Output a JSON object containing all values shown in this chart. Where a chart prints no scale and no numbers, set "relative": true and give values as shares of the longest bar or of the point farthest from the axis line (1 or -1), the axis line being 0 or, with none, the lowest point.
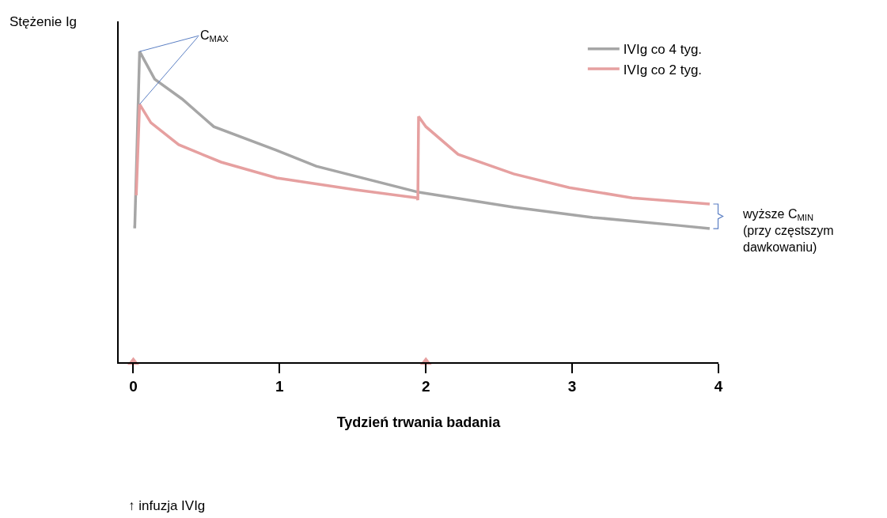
{
  "chart_data": {
    "type": "line",
    "relative": true,
    "ylabel": "Stężenie Ig",
    "xlabel": "Tydzień trwania badania",
    "xlim": [
      -0.1,
      4
    ],
    "xticks": [
      0,
      1,
      2,
      3,
      4
    ],
    "legend": "top right",
    "series": [
      {
        "name": "IVIg co 4 tyg.",
        "color": "#a6a6a6",
        "x": [
          0,
          0.01,
          0.043,
          0.146,
          0.334,
          0.55,
          0.98,
          1.25,
          1.95,
          2.6,
          3.14,
          3.73,
          3.94
        ],
        "values": [
          0.435,
          0.435,
          1,
          0.911,
          0.847,
          0.758,
          0.682,
          0.631,
          0.547,
          0.499,
          0.466,
          0.44,
          0.43
        ]
      },
      {
        "name": "IVIg co 2 tyg.",
        "color": "#e6a0a0",
        "x": [
          0.02,
          0.043,
          0.12,
          0.31,
          0.6,
          0.98,
          1.52,
          1.94,
          1.945,
          1.95,
          2.0,
          2.22,
          2.6,
          2.98,
          3.41,
          3.94
        ],
        "values": [
          0.537,
          0.83,
          0.771,
          0.7,
          0.644,
          0.593,
          0.555,
          0.529,
          0.522,
          0.791,
          0.758,
          0.669,
          0.606,
          0.562,
          0.529,
          0.509
        ]
      },
      {
        "type": "scatter",
        "marker": "triangle",
        "color": "#e6a0a0",
        "x": [
          0,
          2
        ],
        "values": [
          0,
          0
        ]
      }
    ],
    "annotations": [
      {
        "text": "C$_{MAX}$",
        "x": 0.043,
        "y": 1
      },
      "wyższe C$_{MIN}$\n(przy częstszym\ndawkowaniu)",
      "↑ infuzja IVIg"
    ]
  }
}
